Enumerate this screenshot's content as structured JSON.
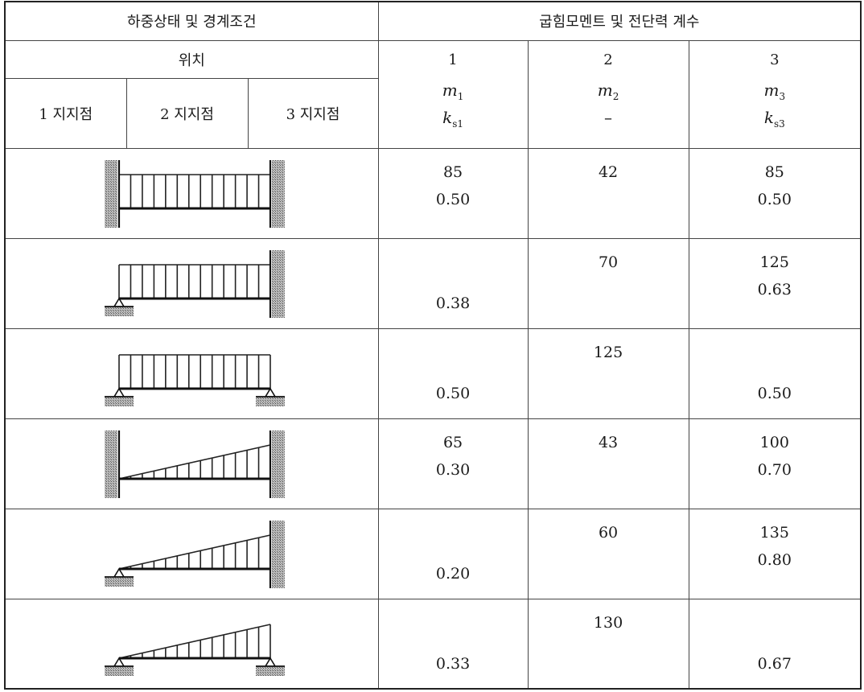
{
  "header": {
    "left_title": "하중상태 및 경계조건",
    "right_title": "굽힘모멘트 및 전단력 계수",
    "position_label": "위치",
    "supports": [
      "1 지지점",
      "2 지지점",
      "3 지지점"
    ],
    "cols": [
      {
        "num": "1",
        "sym_a": "m",
        "sub_a": "1",
        "sym_b": "k",
        "sub_b": "s1"
      },
      {
        "num": "2",
        "sym_a": "m",
        "sub_a": "2",
        "dash": "–"
      },
      {
        "num": "3",
        "sym_a": "m",
        "sub_a": "3",
        "sym_b": "k",
        "sub_b": "s3"
      }
    ]
  },
  "rows": [
    {
      "diagram": "uniform-fixed-fixed",
      "c1_top": "85",
      "c1_bot": "0.50",
      "c2": "42",
      "c3_top": "85",
      "c3_bot": "0.50"
    },
    {
      "diagram": "uniform-pinned-fixed",
      "c1_top": "",
      "c1_bot": "0.38",
      "c2": "70",
      "c3_top": "125",
      "c3_bot": "0.63"
    },
    {
      "diagram": "uniform-pinned-pinned",
      "c1_top": "",
      "c1_bot": "0.50",
      "c2": "125",
      "c3_top": "",
      "c3_bot": "0.50"
    },
    {
      "diagram": "triangular-fixed-fixed",
      "c1_top": "65",
      "c1_bot": "0.30",
      "c2": "43",
      "c3_top": "100",
      "c3_bot": "0.70"
    },
    {
      "diagram": "triangular-pinned-fixed",
      "c1_top": "",
      "c1_bot": "0.20",
      "c2": "60",
      "c3_top": "135",
      "c3_bot": "0.80"
    },
    {
      "diagram": "triangular-pinned-pinned",
      "c1_top": "",
      "c1_bot": "0.33",
      "c2": "130",
      "c3_top": "",
      "c3_bot": "0.67"
    }
  ]
}
